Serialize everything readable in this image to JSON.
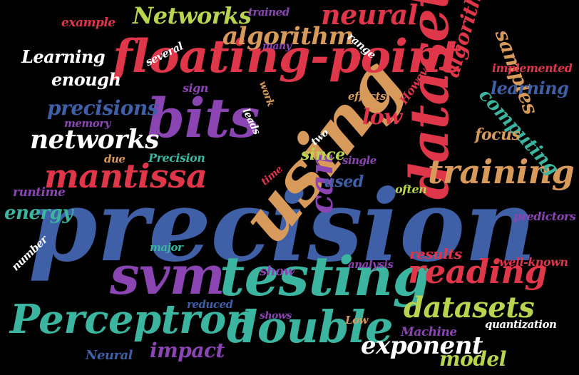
{
  "colors": {
    "background": "#000000",
    "blue": "#3f5fa6",
    "red": "#e0364a",
    "orange": "#d89a5a",
    "green": "#3bb5a0",
    "purple": "#8a45b3",
    "lime": "#b9d44e",
    "white": "#ffffff"
  },
  "words": {
    "precision": "precision",
    "using": "using",
    "floating_point": "floating-point",
    "bits": "bits",
    "dataset": "dataset",
    "svm": "svm",
    "testing": "testing",
    "perceptron": "Perceptron",
    "double": "double",
    "mantissa": "mantissa",
    "training": "training",
    "reading": "reading",
    "algorithm": "algorithm",
    "neural": "neural",
    "networks_cap": "Networks",
    "networks": "networks",
    "can": "can",
    "datasets": "datasets",
    "exponent": "exponent",
    "precisions": "precisions",
    "algorithms": "algorithms",
    "samples": "samples",
    "computing": "computing",
    "learning_cap": "Learning",
    "learning": "learning",
    "enough": "enough",
    "impact": "impact",
    "model": "model",
    "energy": "energy",
    "low": "low",
    "since": "since",
    "used": "used",
    "focus": "focus",
    "results": "results",
    "show": "show",
    "example": "example",
    "trained": "trained",
    "range": "range",
    "many": "many",
    "several": "several",
    "however": "However",
    "implemented": "implemented",
    "sign": "sign",
    "work": "work",
    "effects": "effects",
    "memory": "memory",
    "leads": "leads",
    "two": "two",
    "due": "due",
    "precision_cap": "Precision",
    "single": "single",
    "time": "time",
    "runtime": "runtime",
    "often": "often",
    "predictors": "predictors",
    "number": "number",
    "major": "major",
    "analysis": "analysis",
    "well_known": "well-known",
    "reduced": "reduced",
    "shows": "shows",
    "low_cap": "Low",
    "machine": "Machine",
    "quantization": "quantization",
    "neural_cap": "Neural"
  }
}
